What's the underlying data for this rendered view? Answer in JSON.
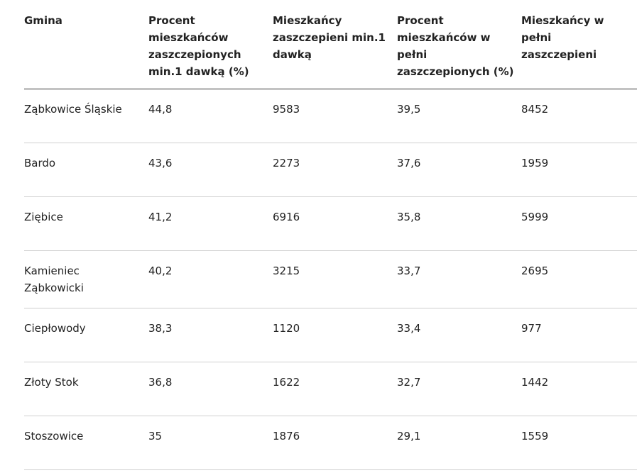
{
  "table": {
    "headers": [
      "Gmina",
      "Procent mieszkańców zaszczepionych min.1 dawką (%)",
      "Mieszkańcy zaszczepieni min.1 dawką",
      "Procent mieszkańców w pełni zaszczepionych (%)",
      "Mieszkańcy w pełni zaszczepieni"
    ],
    "rows": [
      [
        "Ząbkowice Śląskie",
        "44,8",
        "9583",
        "39,5",
        "8452"
      ],
      [
        "Bardo",
        "43,6",
        "2273",
        "37,6",
        "1959"
      ],
      [
        "Ziębice",
        "41,2",
        "6916",
        "35,8",
        "5999"
      ],
      [
        "Kamieniec Ząbkowicki",
        "40,2",
        "3215",
        "33,7",
        "2695"
      ],
      [
        "Ciepłowody",
        "38,3",
        "1120",
        "33,4",
        "977"
      ],
      [
        "Złoty Stok",
        "36,8",
        "1622",
        "32,7",
        "1442"
      ],
      [
        "Stoszowice",
        "35",
        "1876",
        "29,1",
        "1559"
      ]
    ]
  }
}
